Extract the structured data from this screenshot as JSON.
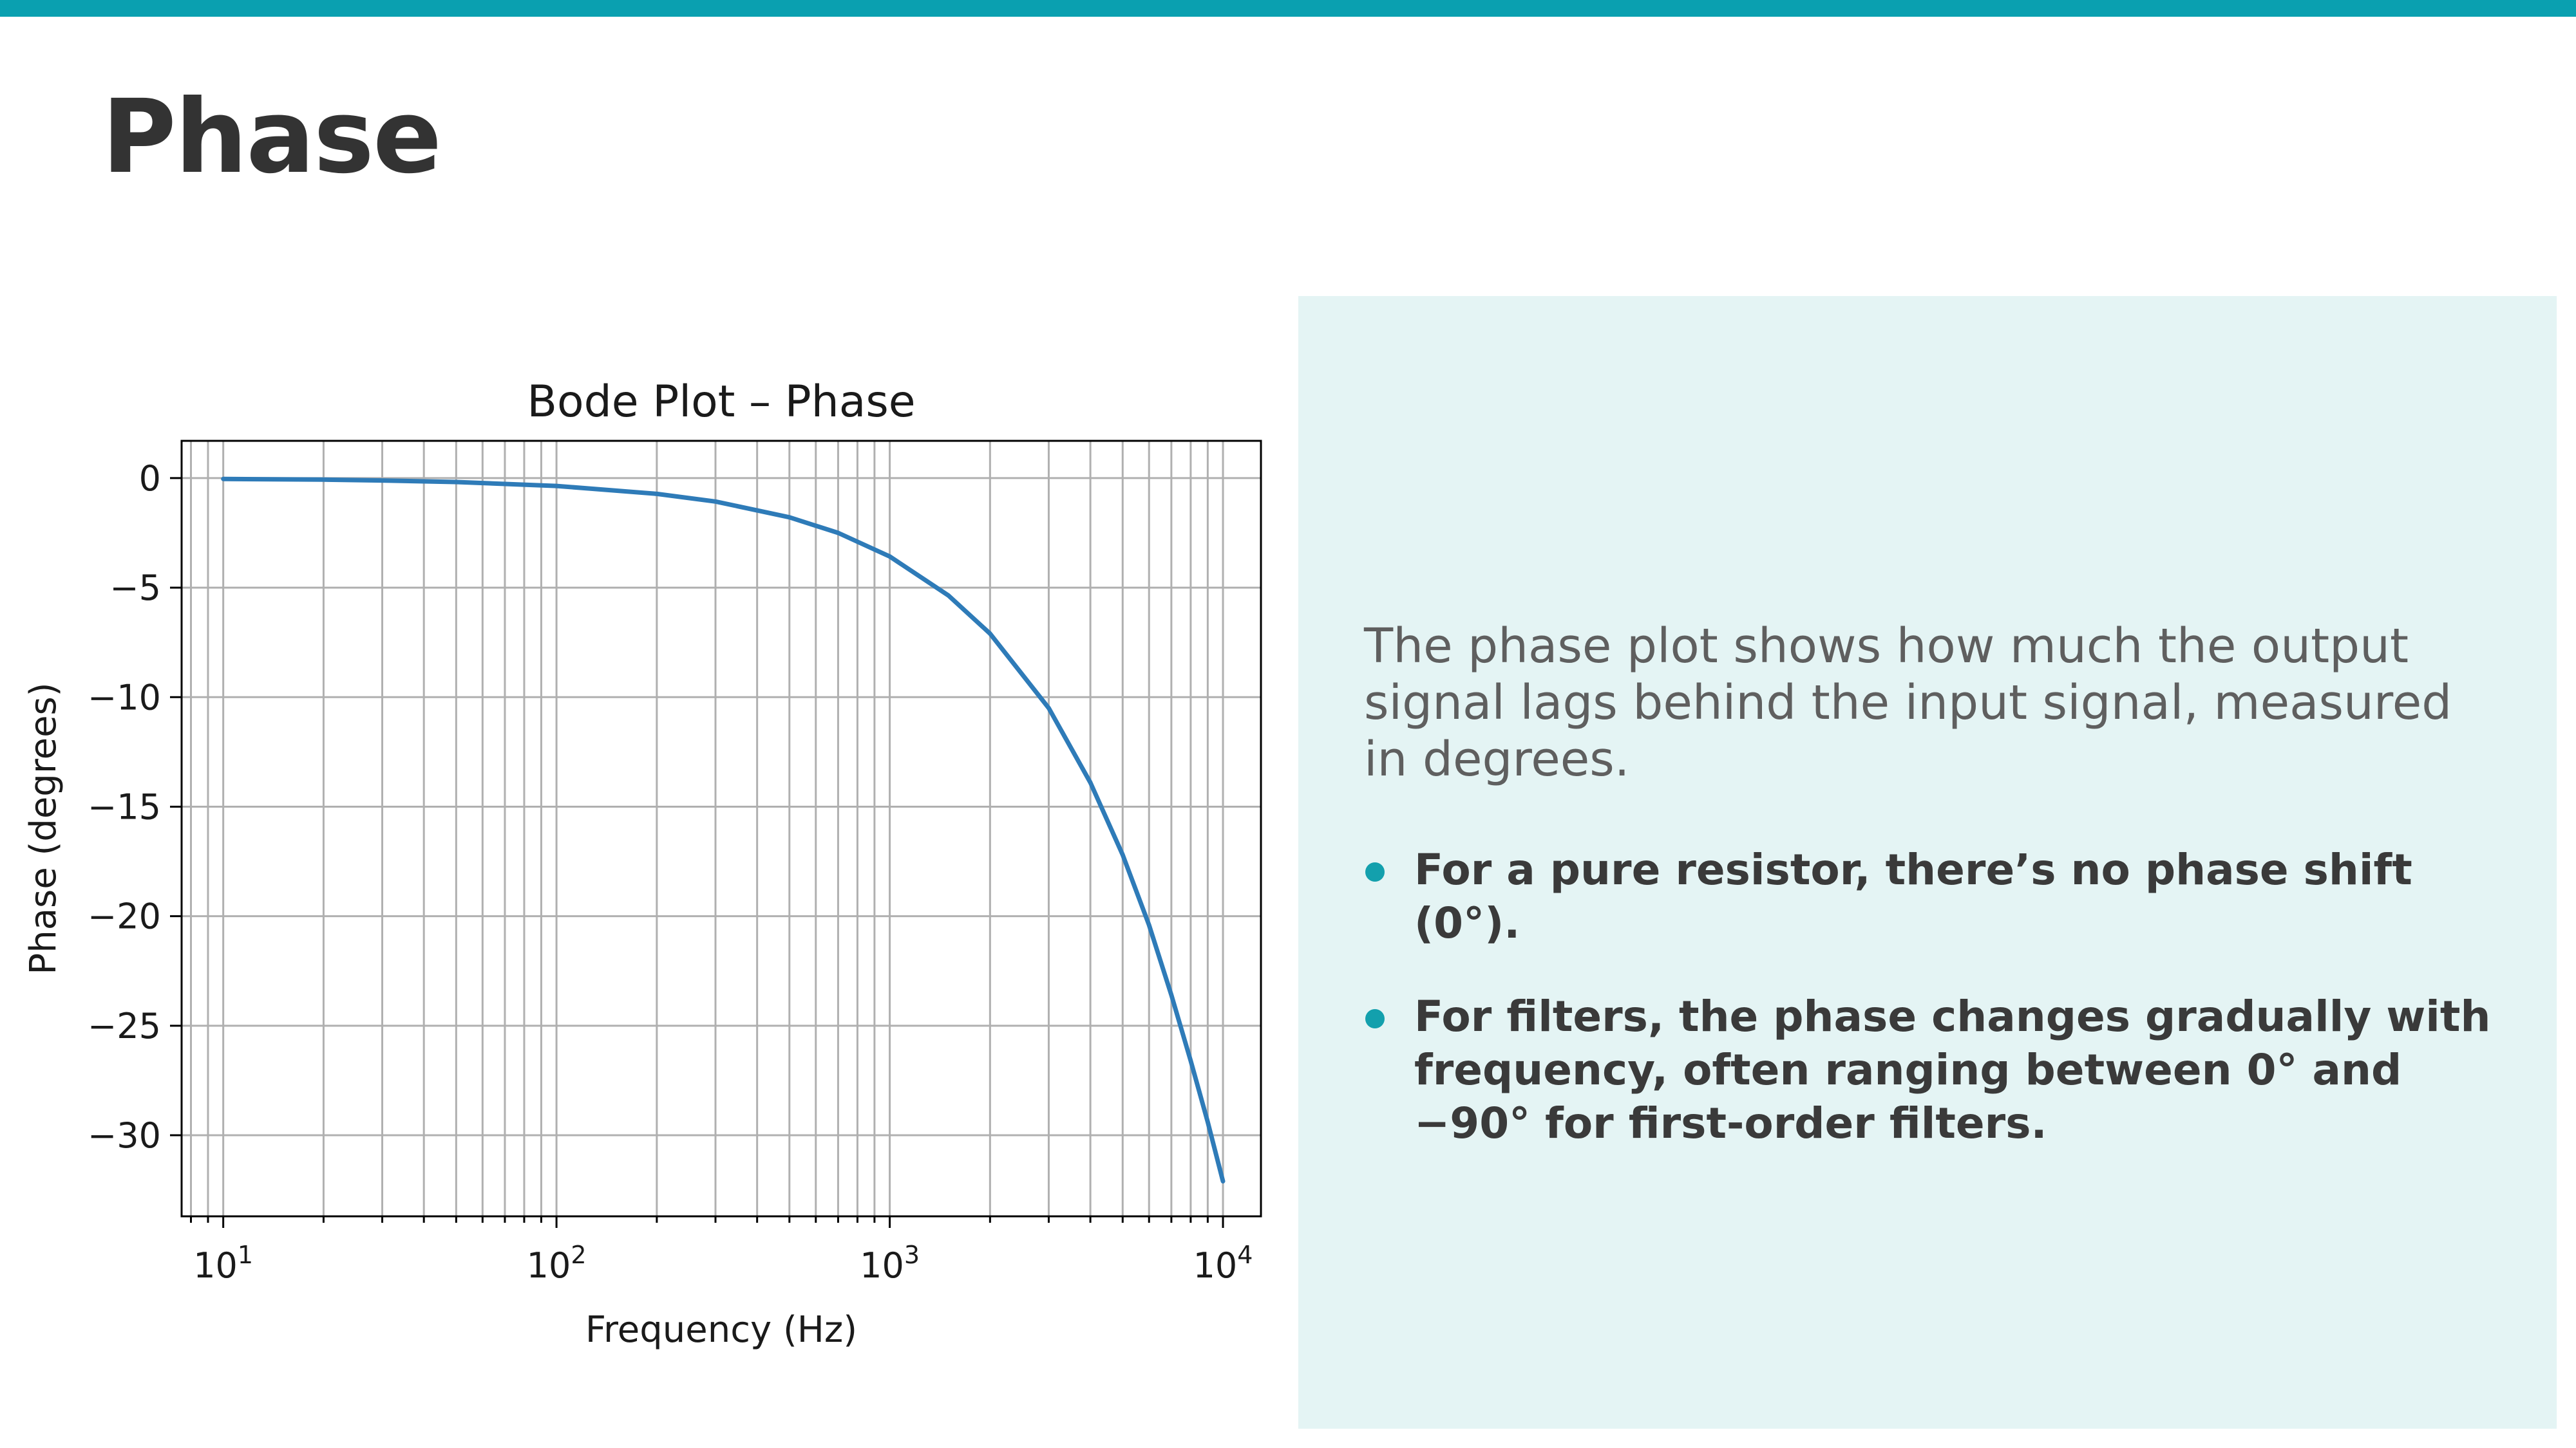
{
  "slide": {
    "title": "Phase",
    "accent_color": "#0aa0b0",
    "panel_color": "#e4f4f4"
  },
  "panel": {
    "intro": "The phase plot shows how much the output signal lags behind the input signal, measured in degrees.",
    "bullets": [
      "For a pure resistor, there’s no phase shift (0°).",
      "For filters, the phase changes gradually with frequency, often ranging between 0° and −90° for first-order filters."
    ],
    "bullet_color": "#13a0ad"
  },
  "chart_data": {
    "type": "line",
    "title": "Bode Plot – Phase",
    "xlabel": "Frequency (Hz)",
    "ylabel": "Phase (degrees)",
    "x_scale": "log",
    "xlim": [
      7.5,
      13000
    ],
    "ylim": [
      -33.7,
      1.7
    ],
    "grid": true,
    "grid_which": "both",
    "line_color": "#2e7bb8",
    "x_ticks": [
      {
        "value": 10,
        "label_base": "10",
        "label_exp": "1"
      },
      {
        "value": 100,
        "label_base": "10",
        "label_exp": "2"
      },
      {
        "value": 1000,
        "label_base": "10",
        "label_exp": "3"
      },
      {
        "value": 10000,
        "label_base": "10",
        "label_exp": "4"
      }
    ],
    "y_ticks": [
      {
        "value": 0,
        "label": "0"
      },
      {
        "value": -5,
        "label": "−5"
      },
      {
        "value": -10,
        "label": "−10"
      },
      {
        "value": -15,
        "label": "−15"
      },
      {
        "value": -20,
        "label": "−20"
      },
      {
        "value": -25,
        "label": "−25"
      },
      {
        "value": -30,
        "label": "−30"
      }
    ],
    "series": [
      {
        "x": [
          10,
          20,
          30,
          50,
          100,
          200,
          300,
          500,
          700,
          1000,
          1500,
          2000,
          3000,
          4000,
          5000,
          6000,
          7000,
          8000,
          9000,
          10000
        ],
        "y": [
          -0.04,
          -0.07,
          -0.11,
          -0.18,
          -0.36,
          -0.72,
          -1.07,
          -1.79,
          -2.5,
          -3.58,
          -5.36,
          -7.1,
          -10.5,
          -13.9,
          -17.2,
          -20.4,
          -23.6,
          -26.6,
          -29.4,
          -32.1
        ]
      }
    ]
  }
}
